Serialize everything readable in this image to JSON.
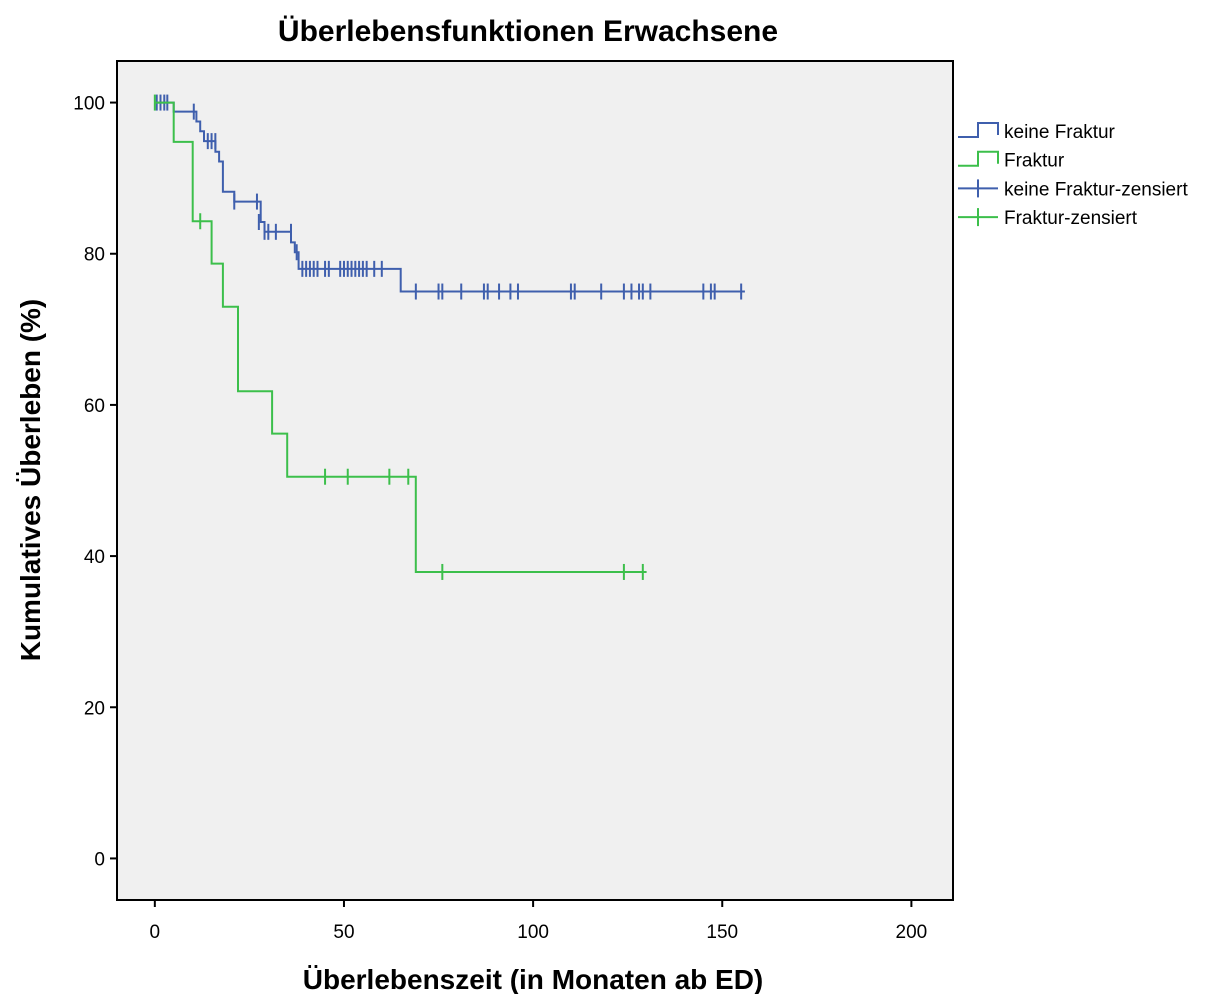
{
  "chart_data": {
    "type": "line",
    "subtype": "kaplan-meier step",
    "title": "Überlebensfunktionen Erwachsene",
    "xlabel": "Überlebenszeit (in Monaten ab ED)",
    "ylabel": "Kumulatives Überleben (%)",
    "xlim": [
      -10,
      211
    ],
    "ylim": [
      -5.5,
      105.5
    ],
    "x_ticks": [
      0,
      50,
      100,
      150,
      200
    ],
    "y_ticks": [
      0,
      20,
      40,
      60,
      80,
      100
    ],
    "grid": false,
    "legend_position": "right",
    "colors": {
      "plot_background": "#f0f0f0",
      "keine_fraktur": "#3f5fad",
      "fraktur": "#3cbf4b"
    },
    "legend": [
      {
        "label": "keine Fraktur",
        "series": 0,
        "kind": "step"
      },
      {
        "label": "Fraktur",
        "series": 1,
        "kind": "step"
      },
      {
        "label": "keine Fraktur-zensiert",
        "series": 0,
        "kind": "censor"
      },
      {
        "label": "Fraktur-zensiert",
        "series": 1,
        "kind": "censor"
      }
    ],
    "series": [
      {
        "name": "keine Fraktur",
        "color": "#3f5fad",
        "steps": [
          [
            0,
            100
          ],
          [
            5,
            98.8
          ],
          [
            11,
            97.5
          ],
          [
            12,
            96.2
          ],
          [
            13,
            94.9
          ],
          [
            16,
            93.5
          ],
          [
            17,
            92.2
          ],
          [
            18,
            88.2
          ],
          [
            21,
            86.9
          ],
          [
            28,
            84.2
          ],
          [
            29,
            82.9
          ],
          [
            36,
            81.5
          ],
          [
            37,
            80.2
          ],
          [
            38,
            78.0
          ],
          [
            65,
            75.0
          ],
          [
            156,
            75.0
          ]
        ],
        "censored": [
          [
            0.5,
            100
          ],
          [
            1.5,
            100
          ],
          [
            2.5,
            100
          ],
          [
            3.3,
            100
          ],
          [
            10.3,
            98.8
          ],
          [
            14,
            94.9
          ],
          [
            15,
            94.9
          ],
          [
            16,
            94.9
          ],
          [
            21,
            86.9
          ],
          [
            27,
            86.9
          ],
          [
            27.5,
            84.2
          ],
          [
            29,
            82.9
          ],
          [
            30,
            82.9
          ],
          [
            32,
            82.9
          ],
          [
            36,
            82.9
          ],
          [
            37.5,
            80.2
          ],
          [
            39,
            78
          ],
          [
            40,
            78
          ],
          [
            41,
            78
          ],
          [
            42,
            78
          ],
          [
            43,
            78
          ],
          [
            45,
            78
          ],
          [
            46,
            78
          ],
          [
            49,
            78
          ],
          [
            50,
            78
          ],
          [
            51,
            78
          ],
          [
            52,
            78
          ],
          [
            53,
            78
          ],
          [
            54,
            78
          ],
          [
            55,
            78
          ],
          [
            56,
            78
          ],
          [
            58,
            78
          ],
          [
            60,
            78
          ],
          [
            69,
            75
          ],
          [
            75,
            75
          ],
          [
            76,
            75
          ],
          [
            81,
            75
          ],
          [
            87,
            75
          ],
          [
            88,
            75
          ],
          [
            91,
            75
          ],
          [
            94,
            75
          ],
          [
            96,
            75
          ],
          [
            110,
            75
          ],
          [
            111,
            75
          ],
          [
            118,
            75
          ],
          [
            124,
            75
          ],
          [
            126,
            75
          ],
          [
            128,
            75
          ],
          [
            129,
            75
          ],
          [
            131,
            75
          ],
          [
            145,
            75
          ],
          [
            147,
            75
          ],
          [
            148,
            75
          ],
          [
            155,
            75
          ]
        ]
      },
      {
        "name": "Fraktur",
        "color": "#3cbf4b",
        "steps": [
          [
            0,
            100
          ],
          [
            5,
            94.8
          ],
          [
            10,
            84.3
          ],
          [
            15,
            78.7
          ],
          [
            18,
            73.0
          ],
          [
            22,
            61.8
          ],
          [
            31,
            56.2
          ],
          [
            35,
            50.5
          ],
          [
            69,
            37.9
          ],
          [
            130,
            37.9
          ]
        ],
        "censored": [
          [
            0,
            100
          ],
          [
            12,
            84.3
          ],
          [
            45,
            50.5
          ],
          [
            51,
            50.5
          ],
          [
            62,
            50.5
          ],
          [
            67,
            50.5
          ],
          [
            76,
            37.9
          ],
          [
            124,
            37.9
          ],
          [
            129,
            37.9
          ]
        ]
      }
    ]
  }
}
